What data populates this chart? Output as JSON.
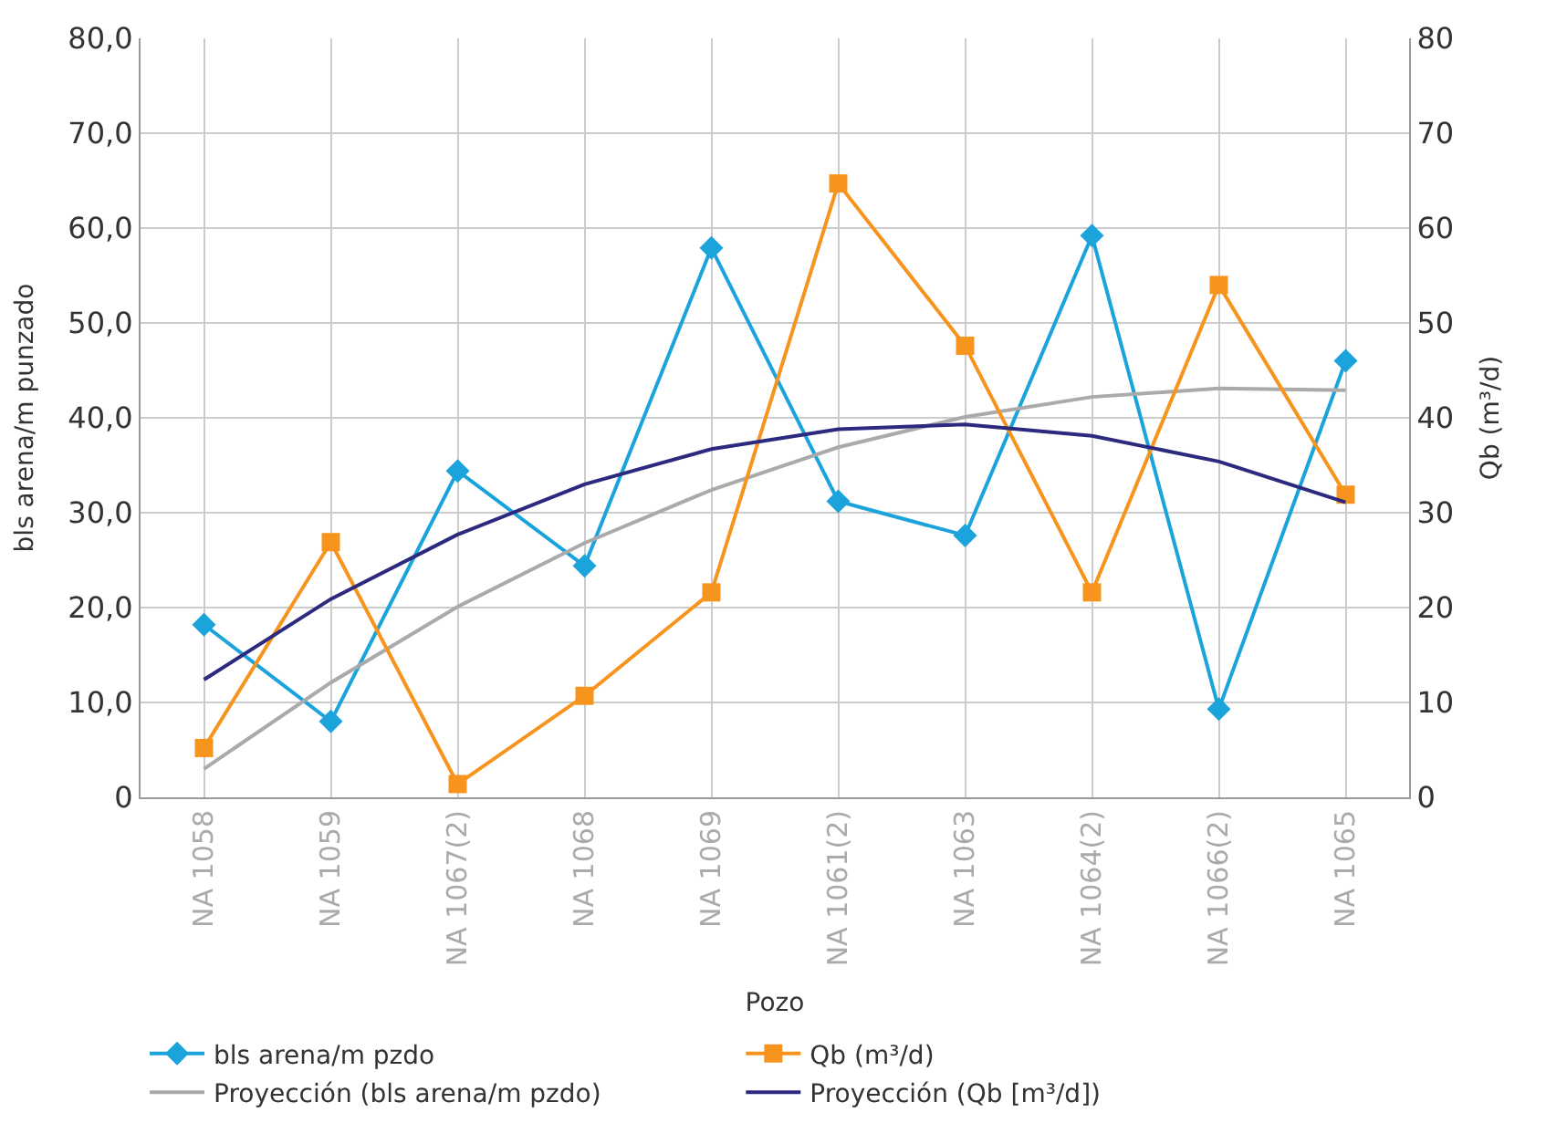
{
  "chart_data": {
    "type": "line",
    "xlabel": "Pozo",
    "ylabel": "bls arena/m punzado",
    "y2label": "Qb (m³/d)",
    "categories": [
      "NA 1058",
      "NA 1059",
      "NA 1067(2)",
      "NA 1068",
      "NA 1069",
      "NA 1061(2)",
      "NA 1063",
      "NA 1064(2)",
      "NA 1066(2)",
      "NA 1065"
    ],
    "series": [
      {
        "name": "bls arena/m pzdo",
        "color": "#1ba3dc",
        "marker": "diamond",
        "values": [
          18.2,
          8,
          34.4,
          24.4,
          57.9,
          31.2,
          27.6,
          59.2,
          9.3,
          46
        ]
      },
      {
        "name": "Qb (m³/d)",
        "color": "#f7941d",
        "marker": "square",
        "axis": "y2",
        "values": [
          5.2,
          26.9,
          1.4,
          10.7,
          21.6,
          64.7,
          47.6,
          21.6,
          54,
          31.9
        ]
      },
      {
        "name": "Proyección (bls arena/m pzdo)",
        "color": "#aaaaaa",
        "marker": "none",
        "values": [
          3.0,
          12.1,
          20.1,
          26.8,
          32.4,
          36.9,
          40.1,
          42.2,
          43.1,
          42.9
        ]
      },
      {
        "name": "Proyección (Qb [m³/d])",
        "color": "#2b2a7e",
        "marker": "none",
        "axis": "y2",
        "values": [
          12.4,
          20.9,
          27.7,
          33.0,
          36.7,
          38.8,
          39.3,
          38.1,
          35.4,
          31.1
        ]
      }
    ],
    "ylim": [
      0,
      80
    ],
    "yticks": [
      {
        "value": 0,
        "label": "0"
      },
      {
        "value": 10,
        "label": "10,0"
      },
      {
        "value": 20,
        "label": "20,0"
      },
      {
        "value": 30,
        "label": "30,0"
      },
      {
        "value": 40,
        "label": "40,0"
      },
      {
        "value": 50,
        "label": "50,0"
      },
      {
        "value": 60,
        "label": "60,0"
      },
      {
        "value": 70,
        "label": "70,0"
      },
      {
        "value": 80,
        "label": "80,0"
      }
    ],
    "y2lim": [
      0,
      80
    ],
    "y2ticks": [
      0,
      10,
      20,
      30,
      40,
      50,
      60,
      70,
      80
    ],
    "grid": true,
    "legend": "bottom",
    "line_style": "solid"
  }
}
